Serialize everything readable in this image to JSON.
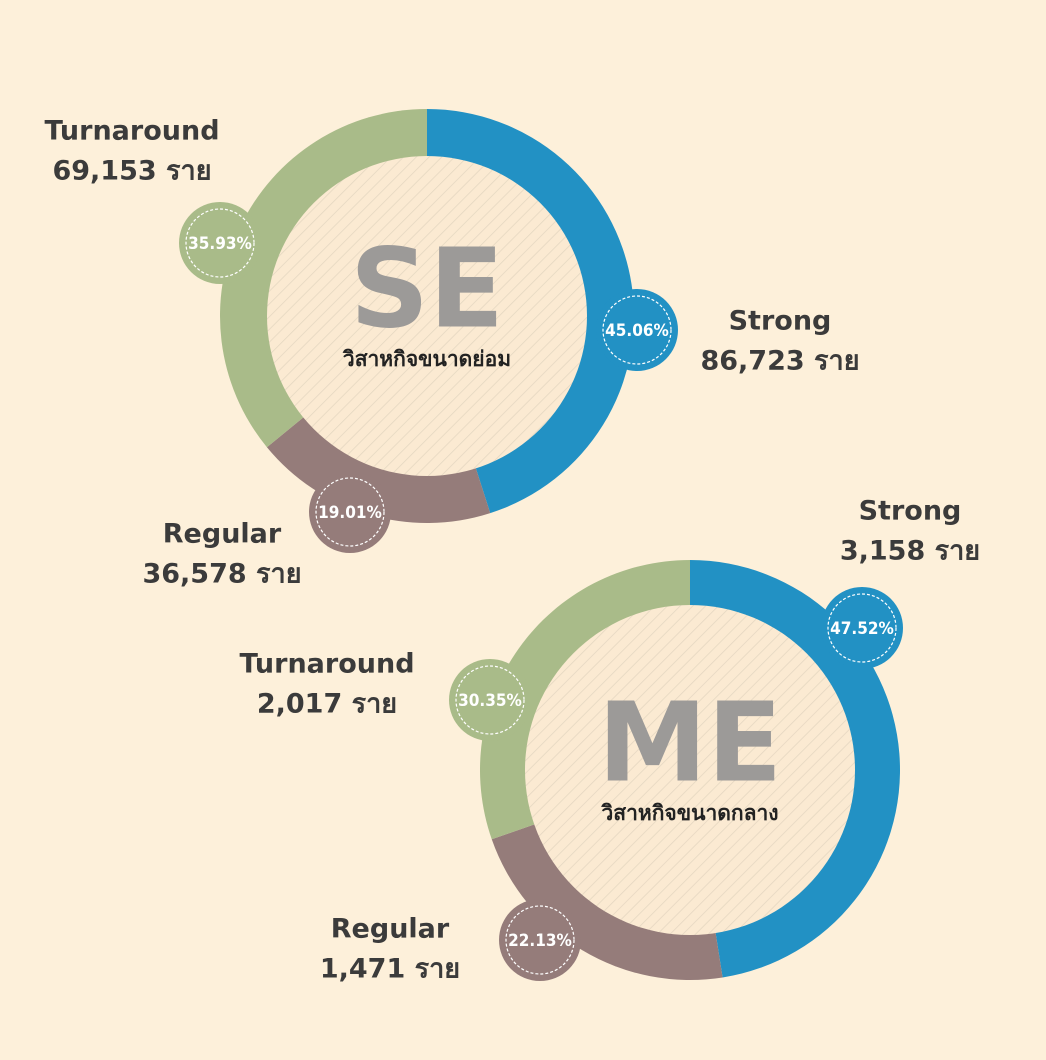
{
  "chart_data": [
    {
      "type": "donut",
      "title": "SE",
      "subtitle": "วิสาหกิจขนาดย่อม",
      "categories": [
        "Strong",
        "Regular",
        "Turnaround"
      ],
      "values": [
        45.06,
        19.01,
        35.93
      ],
      "value_labels": [
        "45.06%",
        "19.01%",
        "35.93%"
      ],
      "counts": [
        86723,
        36578,
        69153
      ],
      "count_labels": [
        "86,723 ราย",
        "36,578 ราย",
        "69,153 ราย"
      ],
      "colors": [
        "#2291c4",
        "#957c7a",
        "#a9bb89"
      ]
    },
    {
      "type": "donut",
      "title": "ME",
      "subtitle": "วิสาหกิจขนาดกลาง",
      "categories": [
        "Strong",
        "Regular",
        "Turnaround"
      ],
      "values": [
        47.52,
        22.13,
        30.35
      ],
      "value_labels": [
        "47.52%",
        "22.13%",
        "30.35%"
      ],
      "counts": [
        3158,
        1471,
        2017
      ],
      "count_labels": [
        "3,158 ราย",
        "1,471 ราย",
        "2,017 ราย"
      ],
      "colors": [
        "#2291c4",
        "#957c7a",
        "#a9bb89"
      ]
    }
  ]
}
